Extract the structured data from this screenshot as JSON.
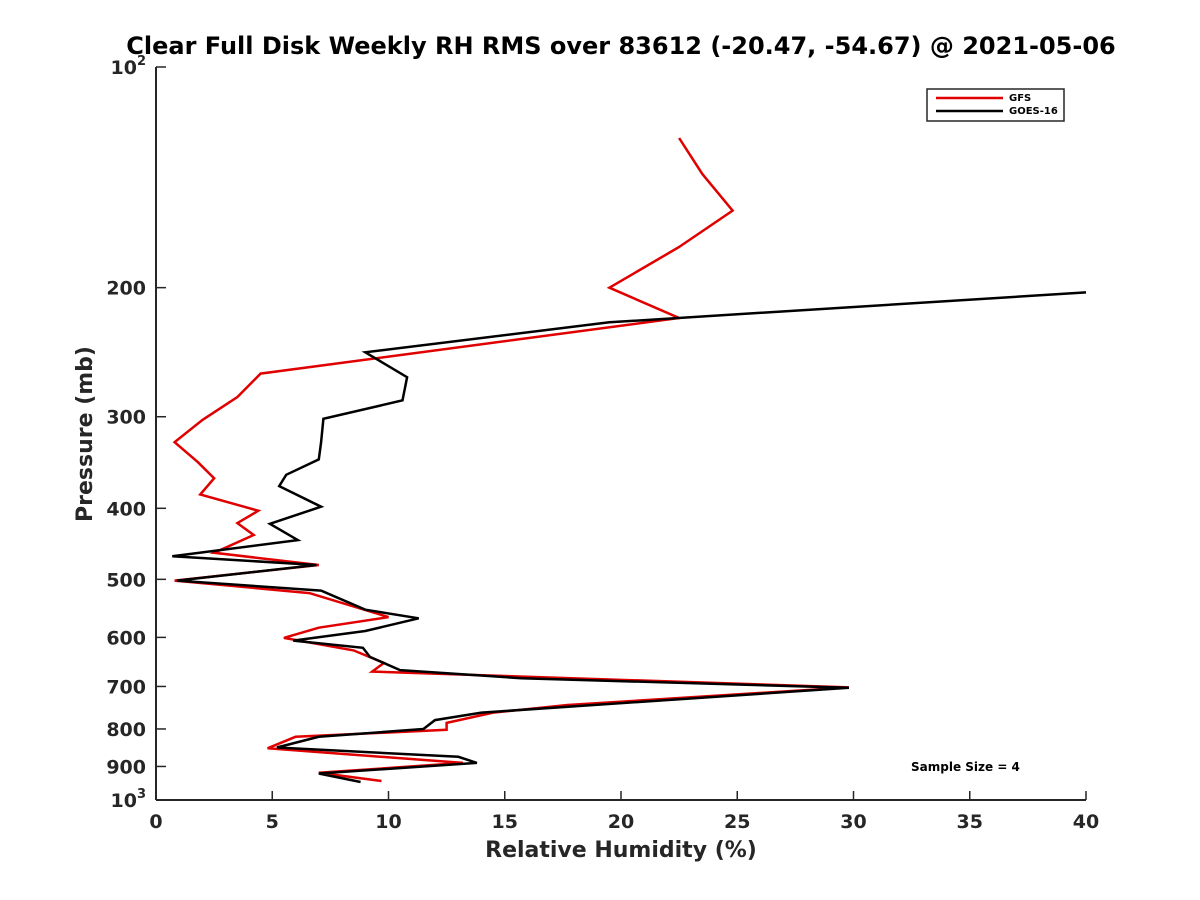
{
  "chart_data": {
    "type": "line",
    "title": "Clear Full Disk Weekly RH RMS over 83612 (-20.47, -54.67) @ 2021-05-06",
    "xlabel": "Relative Humidity (%)",
    "ylabel": "Pressure (mb)",
    "xlim": [
      0,
      40
    ],
    "ylim": [
      100,
      1000
    ],
    "y_scale": "log",
    "y_reversed": true,
    "grid": false,
    "legend_position": "top-right",
    "x_ticks": [
      0,
      5,
      10,
      15,
      20,
      25,
      30,
      35,
      40
    ],
    "y_ticks": [
      {
        "value": 100,
        "base": "10",
        "exp": "2"
      },
      {
        "value": 200,
        "label": "200"
      },
      {
        "value": 300,
        "label": "300"
      },
      {
        "value": 400,
        "label": "400"
      },
      {
        "value": 500,
        "label": "500"
      },
      {
        "value": 600,
        "label": "600"
      },
      {
        "value": 700,
        "label": "700"
      },
      {
        "value": 800,
        "label": "800"
      },
      {
        "value": 900,
        "label": "900"
      },
      {
        "value": 1000,
        "base": "10",
        "exp": "3"
      }
    ],
    "annotation": "Sample Size = 4",
    "series": [
      {
        "name": "GFS",
        "color": "#e00000",
        "points": [
          [
            22.5,
            125
          ],
          [
            23.5,
            140
          ],
          [
            24.8,
            157
          ],
          [
            22.5,
            176
          ],
          [
            19.5,
            200
          ],
          [
            22.5,
            220
          ],
          [
            4.5,
            262
          ],
          [
            3.5,
            282
          ],
          [
            2.0,
            303
          ],
          [
            0.8,
            325
          ],
          [
            1.8,
            346
          ],
          [
            2.5,
            364
          ],
          [
            1.9,
            383
          ],
          [
            4.4,
            403
          ],
          [
            3.5,
            419
          ],
          [
            4.2,
            435
          ],
          [
            2.5,
            460
          ],
          [
            7.0,
            478
          ],
          [
            0.8,
            502
          ],
          [
            6.6,
            522
          ],
          [
            10.0,
            563
          ],
          [
            7.0,
            582
          ],
          [
            5.5,
            601
          ],
          [
            8.5,
            625
          ],
          [
            9.8,
            650
          ],
          [
            9.3,
            668
          ],
          [
            29.8,
            702
          ],
          [
            17.7,
            742
          ],
          [
            14.5,
            760
          ],
          [
            12.5,
            785
          ],
          [
            12.5,
            802
          ],
          [
            6.0,
            820
          ],
          [
            4.8,
            850
          ],
          [
            13.2,
            890
          ],
          [
            7.0,
            918
          ],
          [
            9.7,
            942
          ]
        ]
      },
      {
        "name": "GOES-16",
        "color": "#000000",
        "points": [
          [
            40.0,
            203
          ],
          [
            19.5,
            223
          ],
          [
            9.0,
            245
          ],
          [
            10.8,
            265
          ],
          [
            10.6,
            285
          ],
          [
            7.2,
            302
          ],
          [
            7.1,
            325
          ],
          [
            7.0,
            343
          ],
          [
            5.6,
            360
          ],
          [
            5.3,
            373
          ],
          [
            7.1,
            398
          ],
          [
            4.9,
            420
          ],
          [
            6.1,
            442
          ],
          [
            0.7,
            465
          ],
          [
            6.9,
            478
          ],
          [
            0.9,
            502
          ],
          [
            7.1,
            518
          ],
          [
            9.0,
            550
          ],
          [
            11.3,
            565
          ],
          [
            9.0,
            588
          ],
          [
            5.9,
            606
          ],
          [
            8.9,
            620
          ],
          [
            9.2,
            638
          ],
          [
            10.5,
            665
          ],
          [
            15.7,
            682
          ],
          [
            29.8,
            703
          ],
          [
            14.0,
            760
          ],
          [
            12.0,
            778
          ],
          [
            11.5,
            800
          ],
          [
            7.0,
            820
          ],
          [
            5.2,
            848
          ],
          [
            13.0,
            873
          ],
          [
            13.8,
            890
          ],
          [
            7.0,
            920
          ],
          [
            8.8,
            945
          ]
        ]
      }
    ]
  }
}
